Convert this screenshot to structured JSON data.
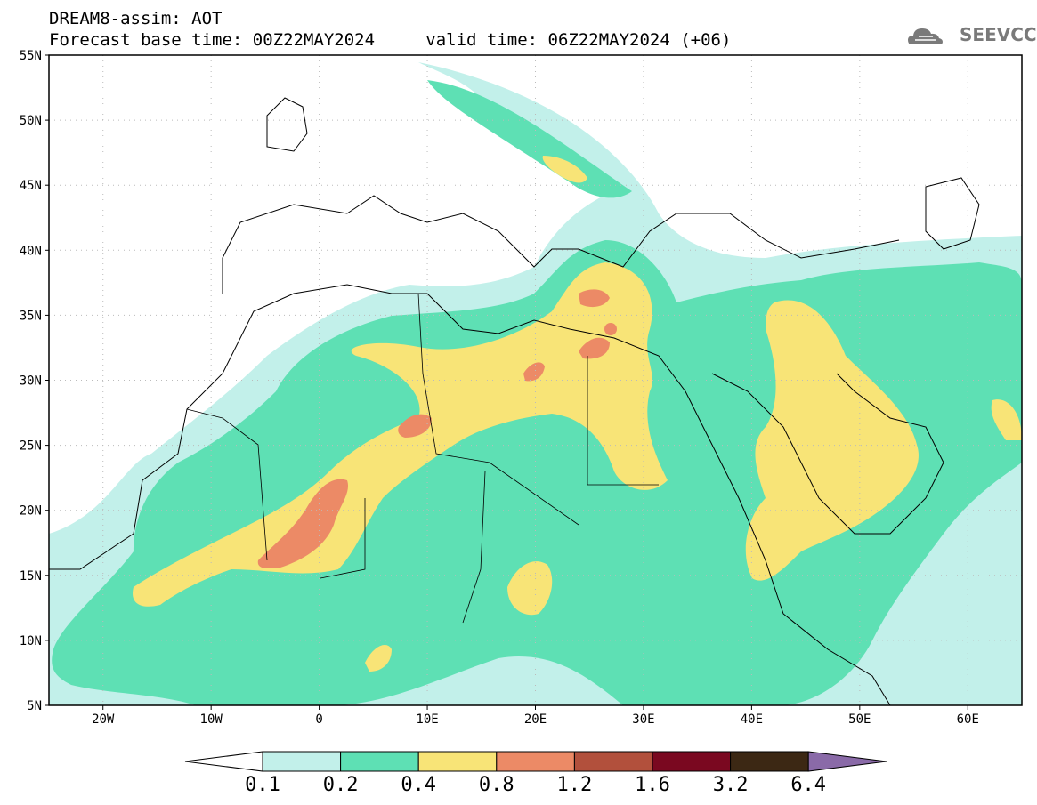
{
  "header": {
    "title": "DREAM8-assim: AOT",
    "base_time_label": "Forecast base time: 00Z22MAY2024",
    "valid_time_label": "valid time: 06Z22MAY2024 (+06)",
    "logo_text": "SEEVCCC",
    "logo_icon": "cloud-icon"
  },
  "map": {
    "lat_labels": [
      "55N",
      "50N",
      "45N",
      "40N",
      "35N",
      "30N",
      "25N",
      "20N",
      "15N",
      "10N",
      "5N"
    ],
    "lon_labels": [
      "20W",
      "10W",
      "0",
      "10E",
      "20E",
      "30E",
      "40E",
      "50E",
      "60E"
    ]
  },
  "colorbar": {
    "labels": [
      "0.1",
      "0.2",
      "0.4",
      "0.8",
      "1.2",
      "1.6",
      "3.2",
      "6.4"
    ],
    "colors": [
      "#ffffff",
      "#c2f0ea",
      "#5ee0b4",
      "#f8e477",
      "#ec8a66",
      "#b2503c",
      "#7a0820",
      "#3c2814",
      "#8a6aa8"
    ]
  },
  "colors": {
    "c01": "#c2f0ea",
    "c02": "#5ee0b4",
    "c04": "#f8e477",
    "c08": "#ec8a66",
    "c12": "#b2503c"
  }
}
